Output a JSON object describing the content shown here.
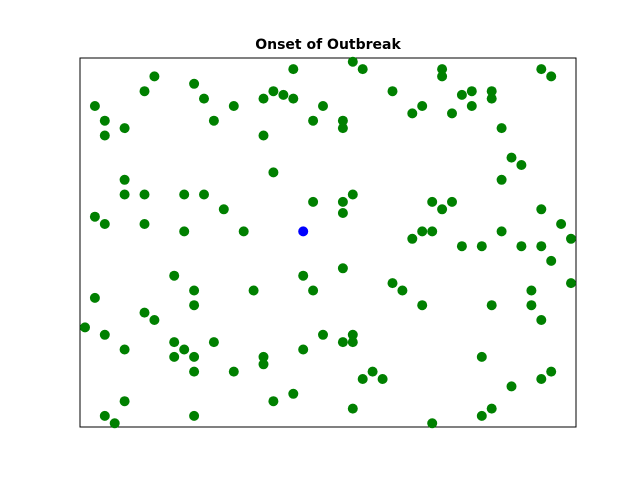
{
  "chart_data": {
    "type": "scatter",
    "title": "Onset of Outbreak",
    "xlabel": "",
    "ylabel": "",
    "xlim": [
      0,
      100
    ],
    "ylim": [
      0,
      100
    ],
    "axis_ticks": false,
    "grid": false,
    "legend": false,
    "series": [
      {
        "color": "#008000",
        "points": [
          [
            3,
            87
          ],
          [
            5,
            83
          ],
          [
            5,
            79
          ],
          [
            9,
            81
          ],
          [
            13,
            91
          ],
          [
            15,
            95
          ],
          [
            23,
            93
          ],
          [
            25,
            89
          ],
          [
            27,
            83
          ],
          [
            31,
            87
          ],
          [
            37,
            89
          ],
          [
            37,
            79
          ],
          [
            39,
            91
          ],
          [
            41,
            90
          ],
          [
            43,
            89
          ],
          [
            43,
            97
          ],
          [
            47,
            83
          ],
          [
            49,
            87
          ],
          [
            53,
            83
          ],
          [
            53,
            81
          ],
          [
            55,
            99
          ],
          [
            57,
            97
          ],
          [
            63,
            91
          ],
          [
            67,
            85
          ],
          [
            69,
            87
          ],
          [
            73,
            97
          ],
          [
            73,
            95
          ],
          [
            75,
            85
          ],
          [
            77,
            90
          ],
          [
            79,
            91
          ],
          [
            79,
            87
          ],
          [
            83,
            91
          ],
          [
            83,
            89
          ],
          [
            85,
            81
          ],
          [
            87,
            73
          ],
          [
            89,
            71
          ],
          [
            93,
            97
          ],
          [
            95,
            95
          ],
          [
            85,
            67
          ],
          [
            39,
            69
          ],
          [
            9,
            67
          ],
          [
            9,
            63
          ],
          [
            13,
            63
          ],
          [
            21,
            63
          ],
          [
            25,
            63
          ],
          [
            29,
            59
          ],
          [
            47,
            61
          ],
          [
            53,
            61
          ],
          [
            53,
            58
          ],
          [
            55,
            63
          ],
          [
            71,
            61
          ],
          [
            73,
            59
          ],
          [
            75,
            61
          ],
          [
            69,
            53
          ],
          [
            71,
            53
          ],
          [
            67,
            51
          ],
          [
            77,
            49
          ],
          [
            81,
            49
          ],
          [
            89,
            49
          ],
          [
            85,
            53
          ],
          [
            93,
            59
          ],
          [
            97,
            55
          ],
          [
            99,
            51
          ],
          [
            93,
            49
          ],
          [
            95,
            45
          ],
          [
            3,
            57
          ],
          [
            5,
            55
          ],
          [
            13,
            55
          ],
          [
            21,
            53
          ],
          [
            33,
            53
          ],
          [
            19,
            41
          ],
          [
            23,
            37
          ],
          [
            23,
            33
          ],
          [
            35,
            37
          ],
          [
            45,
            41
          ],
          [
            47,
            37
          ],
          [
            53,
            43
          ],
          [
            63,
            39
          ],
          [
            65,
            37
          ],
          [
            69,
            33
          ],
          [
            83,
            33
          ],
          [
            91,
            37
          ],
          [
            91,
            33
          ],
          [
            93,
            29
          ],
          [
            99,
            39
          ],
          [
            3,
            35
          ],
          [
            1,
            27
          ],
          [
            5,
            25
          ],
          [
            9,
            21
          ],
          [
            13,
            31
          ],
          [
            15,
            29
          ],
          [
            19,
            23
          ],
          [
            19,
            19
          ],
          [
            21,
            21
          ],
          [
            23,
            19
          ],
          [
            23,
            15
          ],
          [
            27,
            23
          ],
          [
            31,
            15
          ],
          [
            37,
            19
          ],
          [
            37,
            17
          ],
          [
            39,
            7
          ],
          [
            43,
            9
          ],
          [
            45,
            21
          ],
          [
            49,
            25
          ],
          [
            53,
            23
          ],
          [
            55,
            25
          ],
          [
            55,
            23
          ],
          [
            59,
            15
          ],
          [
            61,
            13
          ],
          [
            57,
            13
          ],
          [
            55,
            5
          ],
          [
            81,
            19
          ],
          [
            87,
            11
          ],
          [
            93,
            13
          ],
          [
            95,
            15
          ],
          [
            5,
            3
          ],
          [
            7,
            1
          ],
          [
            9,
            7
          ],
          [
            23,
            3
          ],
          [
            71,
            1
          ],
          [
            81,
            3
          ],
          [
            83,
            5
          ]
        ]
      },
      {
        "color": "#0000ff",
        "points": [
          [
            45,
            53
          ]
        ]
      }
    ]
  }
}
